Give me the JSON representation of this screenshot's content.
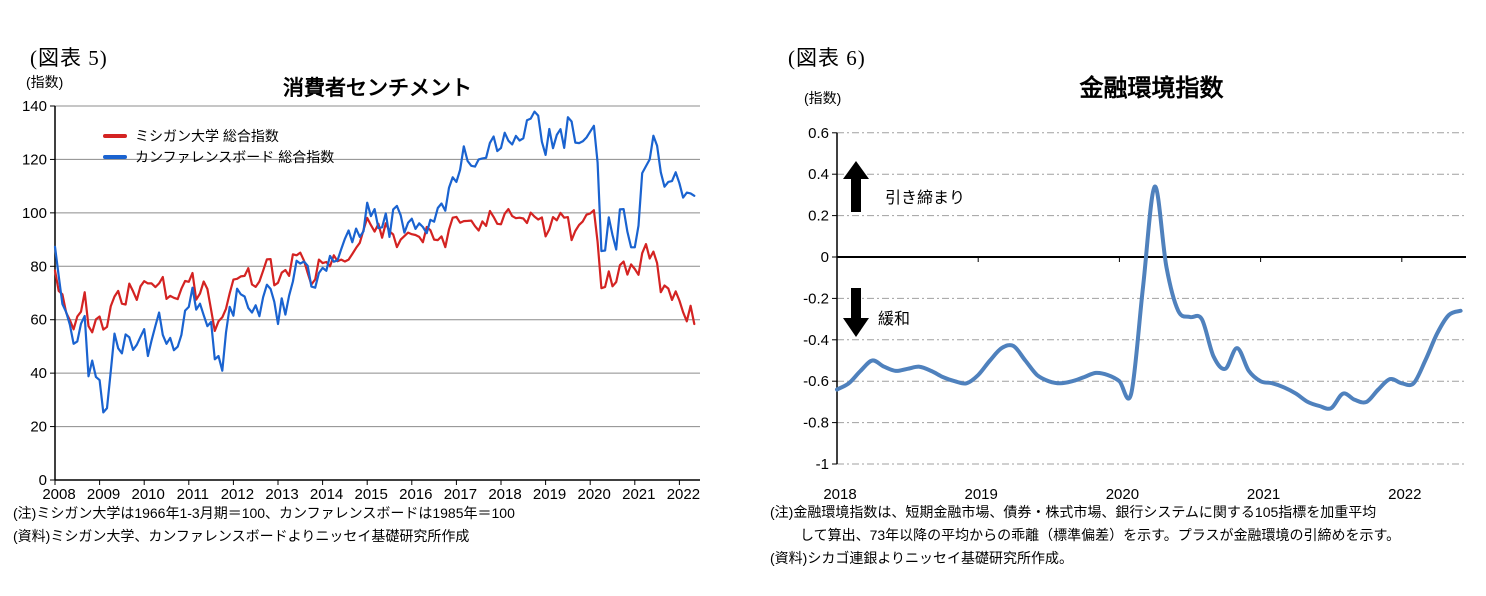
{
  "figure5": {
    "caption": "(図表 5)",
    "unit": "(指数)",
    "title": "消費者センチメント",
    "legend": [
      {
        "label": "ミシガン大学 総合指数",
        "color": "#d42322"
      },
      {
        "label": "カンファレンスボード 総合指数",
        "color": "#1a63d0"
      }
    ],
    "notes": [
      "(注)ミシガン大学は1966年1-3月期＝100、カンファレンスボードは1985年＝100",
      "(資料)ミシガン大学、カンファレンスボードよりニッセイ基礎研究所作成"
    ]
  },
  "figure6": {
    "caption": "(図表 6)",
    "unit": "(指数)",
    "title": "金融環境指数",
    "annotations": {
      "tighten": "引き締まり",
      "ease": "緩和"
    },
    "notes": [
      "(注)金融環境指数は、短期金融市場、債券・株式市場、銀行システムに関する105指標を加重平均",
      "して算出、73年以降の平均からの乖離（標準偏差）を示す。プラスが金融環境の引締めを示す。",
      "(資料)シカゴ連銀よりニッセイ基礎研究所作成。"
    ]
  },
  "chart_data": [
    {
      "type": "line",
      "title": "消費者センチメント",
      "unit_label": "(指数)",
      "x_start": "2008-01",
      "x_end": "2022-05",
      "x_interval_months": 1,
      "x_tick_years": [
        2008,
        2009,
        2010,
        2011,
        2012,
        2013,
        2014,
        2015,
        2016,
        2017,
        2018,
        2019,
        2020,
        2021,
        2022
      ],
      "ylim": [
        0,
        140
      ],
      "y_tick_step": 20,
      "grid": "solid",
      "legend_position": "top-left-inside",
      "series": [
        {
          "key": "michigan",
          "name": "ミシガン大学 総合指数",
          "color": "#d42322",
          "values": [
            78.4,
            70.8,
            69.5,
            62.6,
            59.8,
            56.4,
            61.2,
            63.0,
            70.3,
            57.6,
            55.3,
            60.1,
            61.2,
            56.3,
            57.3,
            65.1,
            68.7,
            70.8,
            66.0,
            65.7,
            73.5,
            70.6,
            67.4,
            72.5,
            74.4,
            73.6,
            73.6,
            72.2,
            73.6,
            76.0,
            67.8,
            68.9,
            68.2,
            67.7,
            71.6,
            74.5,
            74.2,
            77.5,
            67.5,
            69.8,
            74.3,
            71.5,
            63.7,
            55.8,
            59.4,
            60.9,
            64.1,
            69.9,
            75.0,
            75.3,
            76.2,
            76.4,
            79.3,
            73.2,
            72.3,
            74.3,
            78.3,
            82.6,
            82.7,
            72.9,
            73.8,
            77.6,
            78.6,
            76.4,
            84.5,
            84.1,
            85.1,
            82.1,
            77.5,
            73.2,
            75.1,
            82.5,
            81.2,
            81.6,
            80.0,
            84.1,
            81.9,
            82.5,
            81.8,
            82.5,
            84.6,
            86.9,
            88.8,
            93.6,
            98.1,
            95.4,
            93.0,
            95.9,
            90.7,
            96.1,
            93.1,
            91.9,
            87.2,
            90.0,
            91.3,
            92.6,
            92.0,
            91.7,
            91.0,
            89.0,
            94.7,
            93.5,
            90.0,
            89.8,
            91.2,
            87.2,
            93.8,
            98.2,
            98.5,
            96.3,
            96.9,
            97.0,
            97.1,
            95.0,
            93.4,
            96.8,
            95.1,
            100.7,
            98.5,
            95.9,
            95.7,
            99.7,
            101.4,
            98.8,
            98.0,
            98.2,
            97.9,
            96.2,
            100.1,
            98.6,
            97.5,
            98.3,
            91.2,
            93.8,
            98.4,
            97.2,
            100.0,
            98.2,
            98.4,
            89.8,
            93.2,
            95.5,
            96.8,
            99.3,
            99.8,
            101.0,
            89.1,
            71.8,
            72.3,
            78.1,
            72.5,
            74.1,
            80.4,
            81.8,
            76.9,
            80.7,
            79.0,
            76.8,
            84.9,
            88.3,
            82.9,
            85.5,
            81.2,
            70.3,
            72.8,
            71.7,
            67.4,
            70.6,
            67.2,
            62.8,
            59.4,
            65.2,
            58.4
          ]
        },
        {
          "key": "conference-board",
          "name": "カンファレンスボード 総合指数",
          "color": "#1a63d0",
          "values": [
            87.3,
            76.4,
            65.9,
            62.8,
            58.1,
            51.0,
            51.9,
            58.5,
            61.4,
            38.8,
            44.7,
            38.6,
            37.4,
            25.3,
            26.9,
            40.8,
            54.8,
            49.3,
            47.4,
            54.5,
            53.4,
            48.7,
            50.6,
            53.6,
            56.5,
            46.4,
            52.3,
            57.7,
            62.7,
            54.3,
            51.0,
            53.2,
            48.6,
            49.9,
            54.3,
            63.4,
            64.8,
            72.0,
            63.8,
            66.0,
            61.7,
            57.6,
            59.2,
            45.2,
            46.4,
            40.9,
            55.2,
            64.8,
            61.5,
            71.6,
            69.5,
            68.7,
            64.4,
            62.7,
            65.4,
            61.3,
            68.4,
            73.1,
            71.5,
            66.7,
            58.4,
            68.0,
            61.9,
            69.0,
            74.3,
            82.1,
            81.0,
            81.8,
            80.2,
            72.4,
            72.0,
            77.5,
            79.4,
            78.3,
            83.9,
            81.7,
            82.2,
            86.4,
            90.3,
            93.4,
            89.0,
            94.1,
            91.0,
            93.1,
            103.8,
            98.8,
            101.4,
            94.3,
            94.6,
            99.8,
            91.0,
            101.3,
            102.6,
            99.1,
            92.6,
            96.3,
            97.8,
            94.0,
            96.1,
            94.7,
            92.4,
            97.4,
            96.7,
            101.8,
            103.5,
            100.8,
            109.4,
            113.3,
            111.6,
            116.1,
            124.9,
            119.4,
            117.6,
            117.3,
            120.0,
            120.4,
            120.6,
            126.2,
            128.6,
            123.1,
            124.3,
            130.0,
            127.0,
            125.6,
            128.8,
            127.1,
            127.9,
            134.7,
            135.3,
            137.9,
            136.4,
            126.6,
            121.7,
            131.4,
            124.2,
            129.2,
            131.3,
            124.3,
            135.8,
            134.2,
            126.3,
            126.1,
            126.8,
            128.2,
            130.4,
            132.6,
            118.8,
            85.7,
            85.9,
            98.3,
            91.7,
            86.3,
            101.3,
            101.4,
            92.9,
            87.1,
            87.1,
            95.2,
            114.9,
            117.5,
            120.0,
            128.9,
            125.1,
            115.2,
            109.8,
            111.6,
            111.9,
            115.2,
            111.1,
            105.7,
            107.6,
            107.3,
            106.4
          ]
        }
      ]
    },
    {
      "type": "line",
      "title": "金融環境指数",
      "unit_label": "(指数)",
      "x_start": "2018-01",
      "x_end": "2022-06",
      "x_interval_months": 1,
      "x_tick_years": [
        2018,
        2019,
        2020,
        2021,
        2022
      ],
      "ylim": [
        -1,
        0.6
      ],
      "y_tick_step": 0.2,
      "grid": "dashed",
      "annotations": [
        {
          "label": "引き締まり",
          "direction": "up",
          "meaning": "プラス＝引き締まり"
        },
        {
          "label": "緩和",
          "direction": "down",
          "meaning": "マイナス＝緩和"
        }
      ],
      "series": [
        {
          "key": "nfci",
          "name": "金融環境指数",
          "color": "#4f81bd",
          "values": [
            -0.64,
            -0.61,
            -0.55,
            -0.5,
            -0.53,
            -0.55,
            -0.54,
            -0.53,
            -0.55,
            -0.58,
            -0.6,
            -0.61,
            -0.57,
            -0.5,
            -0.44,
            -0.43,
            -0.5,
            -0.57,
            -0.6,
            -0.61,
            -0.6,
            -0.58,
            -0.56,
            -0.57,
            -0.6,
            -0.66,
            -0.15,
            0.34,
            -0.05,
            -0.26,
            -0.29,
            -0.3,
            -0.48,
            -0.54,
            -0.44,
            -0.55,
            -0.6,
            -0.61,
            -0.63,
            -0.66,
            -0.7,
            -0.72,
            -0.73,
            -0.66,
            -0.69,
            -0.7,
            -0.64,
            -0.59,
            -0.61,
            -0.61,
            -0.5,
            -0.37,
            -0.28,
            -0.26
          ]
        }
      ]
    }
  ]
}
